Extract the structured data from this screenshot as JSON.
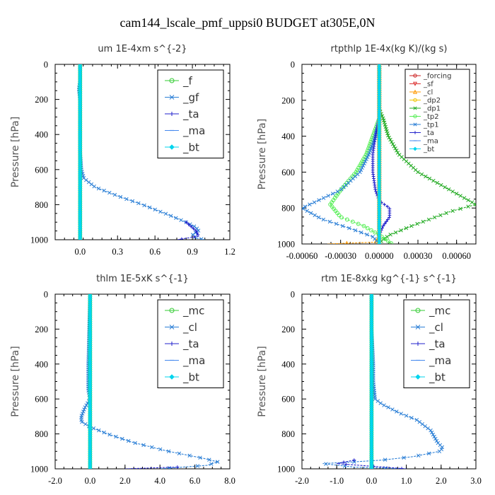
{
  "figure_title": "cam144_lscale_pmf_uppsi0  BUDGET at305E,0N",
  "chart_data": [
    {
      "type": "line",
      "title": "um  1E-4xm s^{-2}",
      "ylabel": "Pressure [hPa]",
      "xlim": [
        -0.2,
        1.2
      ],
      "ylim": [
        1000,
        0
      ],
      "xticks": [
        0.0,
        0.3,
        0.6,
        0.9,
        1.2
      ],
      "xtick_labels": [
        "0.0",
        "0.3",
        "0.6",
        "0.9",
        "1.2"
      ],
      "yticks": [
        0,
        200,
        400,
        600,
        800,
        1000
      ],
      "ytick_labels": [
        "0",
        "200",
        "400",
        "600",
        "800",
        "1000"
      ],
      "legend_position": "top-right",
      "legend_entries": [
        "_f",
        "_gf",
        "_ta",
        "_ma",
        "_bt"
      ],
      "series": [
        {
          "name": "_f",
          "color": "#33cc33",
          "marker": "o",
          "p": [
            0,
            1000
          ],
          "values": [
            0,
            0
          ]
        },
        {
          "name": "_gf",
          "color": "#2b7fd6",
          "marker": "x",
          "p": [
            0,
            100,
            140,
            200,
            300,
            400,
            500,
            600,
            650,
            700,
            750,
            800,
            850,
            900,
            930,
            950,
            970,
            990,
            1000
          ],
          "values": [
            0,
            0,
            -0.01,
            0.0,
            0.0,
            0.0,
            0.0,
            0.01,
            0.03,
            0.12,
            0.3,
            0.5,
            0.68,
            0.85,
            0.93,
            0.95,
            0.9,
            0.93,
            1.0
          ]
        },
        {
          "name": "_ta",
          "color": "#2222cc",
          "marker": "+",
          "p": [
            900,
            950,
            980,
            1000
          ],
          "values": [
            0.85,
            0.93,
            0.95,
            0.78
          ]
        },
        {
          "name": "_ma",
          "color": "#4488ee",
          "marker": "-",
          "p": [
            0,
            1000
          ],
          "values": [
            0,
            0
          ]
        },
        {
          "name": "_bt",
          "color": "#00d5ee",
          "marker": "diamond",
          "p": [
            0,
            1000
          ],
          "values": [
            0,
            0
          ]
        }
      ]
    },
    {
      "type": "line",
      "title": "rtpthlp  1E-4x(kg K)/(kg s)",
      "ylabel": "Pressure [hPa]",
      "xlim": [
        -0.0006,
        0.00075
      ],
      "ylim": [
        1000,
        0
      ],
      "xticks": [
        -0.0006,
        -0.0003,
        0.0,
        0.0003,
        0.0006
      ],
      "xtick_labels": [
        "-0.00060",
        "-0.00030",
        "0.00000",
        "0.00030",
        "0.00060"
      ],
      "yticks": [
        0,
        200,
        400,
        600,
        800,
        1000
      ],
      "ytick_labels": [
        "0",
        "200",
        "400",
        "600",
        "800",
        "1000"
      ],
      "legend_position": "top-right",
      "legend_entries": [
        "_forcing",
        "_sf",
        "_cl",
        "_dp2",
        "_dp1",
        "_tp2",
        "_tp1",
        "_ta",
        "_ma",
        "_bt"
      ],
      "series": [
        {
          "name": "_forcing",
          "color": "#cc2222",
          "marker": "o",
          "p": [
            0,
            1000
          ],
          "values": [
            0,
            0
          ]
        },
        {
          "name": "_sf",
          "color": "#dd3333",
          "marker": "v",
          "p": [
            0,
            1000
          ],
          "values": [
            0,
            0
          ]
        },
        {
          "name": "_cl",
          "color": "#ff9900",
          "marker": "^",
          "p": [
            0,
            960,
            990,
            1000
          ],
          "values": [
            0,
            0,
            -3e-05,
            -0.0004
          ]
        },
        {
          "name": "_dp2",
          "color": "#f0c400",
          "marker": "o",
          "p": [
            0,
            1000
          ],
          "values": [
            0,
            0
          ]
        },
        {
          "name": "_dp1",
          "color": "#22aa22",
          "marker": "x",
          "p": [
            0,
            250,
            300,
            400,
            500,
            600,
            700,
            780,
            820,
            900,
            950,
            980,
            1000
          ],
          "values": [
            0,
            0.0,
            3e-05,
            7e-05,
            0.00015,
            0.0003,
            0.00055,
            0.00075,
            0.00055,
            0.00025,
            8e-05,
            2e-05,
            0.0
          ]
        },
        {
          "name": "_tp2",
          "color": "#55ee55",
          "marker": "o",
          "p": [
            0,
            300,
            400,
            500,
            600,
            700,
            780,
            850,
            900,
            950,
            1000
          ],
          "values": [
            0,
            0.0,
            -5e-05,
            -0.0001,
            -0.00018,
            -0.0003,
            -0.00038,
            -0.0003,
            -0.00012,
            0.0,
            0.0001
          ]
        },
        {
          "name": "_tp1",
          "color": "#2b7fd6",
          "marker": "x",
          "p": [
            0,
            300,
            400,
            500,
            600,
            700,
            800,
            860,
            920,
            960,
            1000
          ],
          "values": [
            0,
            0.0,
            -3e-05,
            -8e-05,
            -0.00015,
            -0.0003,
            -0.0006,
            -0.00045,
            -0.0002,
            -5e-05,
            0.0
          ]
        },
        {
          "name": "_ta",
          "color": "#2222cc",
          "marker": "+",
          "p": [
            0,
            300,
            400,
            500,
            600,
            700,
            760,
            800,
            850,
            900,
            950,
            1000
          ],
          "values": [
            0,
            0.0,
            -3e-05,
            -5e-05,
            -5e-05,
            -3e-05,
            0.0,
            8e-05,
            8e-05,
            3e-05,
            0.0,
            0.0
          ]
        },
        {
          "name": "_ma",
          "color": "#4488ee",
          "marker": "-",
          "p": [
            0,
            1000
          ],
          "values": [
            0,
            0
          ]
        },
        {
          "name": "_bt",
          "color": "#00d5ee",
          "marker": "diamond",
          "p": [
            0,
            1000
          ],
          "values": [
            0,
            0
          ]
        }
      ]
    },
    {
      "type": "line",
      "title": "thlm  1E-5xK s^{-1}",
      "ylabel": "Pressure [hPa]",
      "xlim": [
        -2.0,
        8.0
      ],
      "ylim": [
        1000,
        0
      ],
      "xticks": [
        -2.0,
        0.0,
        2.0,
        4.0,
        6.0,
        8.0
      ],
      "xtick_labels": [
        "-2.0",
        "0.0",
        "2.0",
        "4.0",
        "6.0",
        "8.0"
      ],
      "yticks": [
        0,
        200,
        400,
        600,
        800,
        1000
      ],
      "ytick_labels": [
        "0",
        "200",
        "400",
        "600",
        "800",
        "1000"
      ],
      "legend_position": "top-right",
      "legend_entries": [
        "_mc",
        "_cl",
        "_ta",
        "_ma",
        "_bt"
      ],
      "series": [
        {
          "name": "_mc",
          "color": "#33cc33",
          "marker": "o",
          "p": [
            0,
            1000
          ],
          "values": [
            0,
            0
          ]
        },
        {
          "name": "_cl",
          "color": "#2b7fd6",
          "marker": "x",
          "p": [
            0,
            200,
            400,
            500,
            550,
            600,
            650,
            700,
            730,
            760,
            800,
            850,
            900,
            940,
            960,
            980,
            1000
          ],
          "values": [
            0,
            -0.05,
            -0.1,
            -0.1,
            -0.1,
            0.0,
            -0.3,
            -0.5,
            -0.5,
            0.0,
            1.0,
            2.5,
            4.5,
            6.5,
            7.3,
            6.7,
            4.0
          ]
        },
        {
          "name": "_ta",
          "color": "#2222cc",
          "marker": "+",
          "p": [
            990,
            1000
          ],
          "values": [
            5.0,
            2.0
          ]
        },
        {
          "name": "_ma",
          "color": "#4488ee",
          "marker": "-",
          "p": [
            0,
            1000
          ],
          "values": [
            0,
            0
          ]
        },
        {
          "name": "_bt",
          "color": "#00d5ee",
          "marker": "diamond",
          "p": [
            0,
            1000
          ],
          "values": [
            0,
            0
          ]
        }
      ]
    },
    {
      "type": "line",
      "title": "rtm  1E-8xkg kg^{-1} s^{-1}",
      "ylabel": "Pressure [hPa]",
      "xlim": [
        -2.0,
        3.0
      ],
      "ylim": [
        1000,
        0
      ],
      "xticks": [
        -2.0,
        -1.0,
        0.0,
        1.0,
        2.0,
        3.0
      ],
      "xtick_labels": [
        "-2.0",
        "-1.0",
        "0.0",
        "1.0",
        "2.0",
        "3.0"
      ],
      "yticks": [
        0,
        200,
        400,
        600,
        800,
        1000
      ],
      "ytick_labels": [
        "0",
        "200",
        "400",
        "600",
        "800",
        "1000"
      ],
      "legend_position": "top-right",
      "legend_entries": [
        "_mc",
        "_cl",
        "_ta",
        "_ma",
        "_bt"
      ],
      "series": [
        {
          "name": "_mc",
          "color": "#33cc33",
          "marker": "o",
          "p": [
            0,
            1000
          ],
          "values": [
            0,
            0
          ]
        },
        {
          "name": "_cl",
          "color": "#2b7fd6",
          "marker": "x",
          "p": [
            0,
            200,
            400,
            500,
            600,
            630,
            680,
            720,
            780,
            850,
            880,
            900,
            930,
            950,
            960,
            970,
            990,
            1000
          ],
          "values": [
            0,
            0.0,
            0.05,
            0.05,
            0.1,
            0.3,
            0.8,
            1.3,
            1.7,
            1.9,
            2.05,
            1.95,
            1.2,
            0.3,
            -0.5,
            -1.4,
            -0.5,
            1.0
          ]
        },
        {
          "name": "_ta",
          "color": "#2222cc",
          "marker": "+",
          "p": [
            950,
            970,
            1000
          ],
          "values": [
            -0.5,
            -1.0,
            1.0
          ]
        },
        {
          "name": "_ma",
          "color": "#4488ee",
          "marker": "-",
          "p": [
            0,
            1000
          ],
          "values": [
            0,
            0
          ]
        },
        {
          "name": "_bt",
          "color": "#00d5ee",
          "marker": "diamond",
          "p": [
            0,
            1000
          ],
          "values": [
            0,
            0
          ]
        }
      ]
    }
  ]
}
